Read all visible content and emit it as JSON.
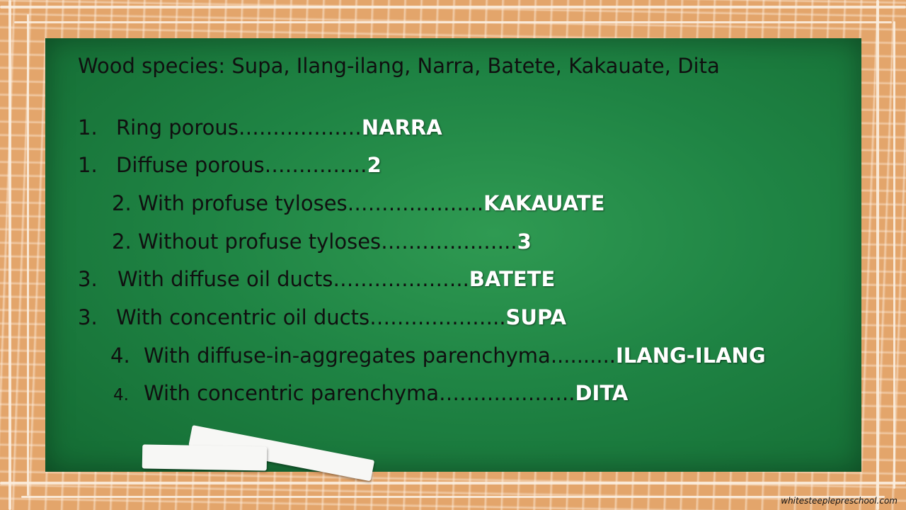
{
  "header": "Wood species: Supa, Ilang-ilang, Narra, Batete, Kakauate, Dita",
  "key": [
    {
      "num": "1.",
      "text": "Ring porous………………",
      "answer": "NARRA"
    },
    {
      "num": "1.",
      "text": "Diffuse porous……………",
      "answer": "2"
    },
    {
      "num": "2.",
      "text": "With profuse tyloses………………..",
      "answer": "KAKAUATE"
    },
    {
      "num": "2.",
      "text": "Without profuse tyloses………………..",
      "answer": "3"
    },
    {
      "num": "3.",
      "text": "With diffuse oil ducts………………..",
      "answer": "BATETE"
    },
    {
      "num": "3.",
      "text": "With concentric oil ducts………………..",
      "answer": "SUPA"
    },
    {
      "num": "4.",
      "text": "With diffuse-in-aggregates parenchyma..........",
      "answer": "ILANG-ILANG"
    },
    {
      "num": "4.",
      "text": "With concentric parenchyma………………..",
      "answer": "DITA"
    }
  ],
  "watermark": "whitesteeplepreschool.com",
  "colors": {
    "board": "#1f8444",
    "frame": "#e3a56b",
    "answer": "#ffffff",
    "text": "#101010"
  }
}
